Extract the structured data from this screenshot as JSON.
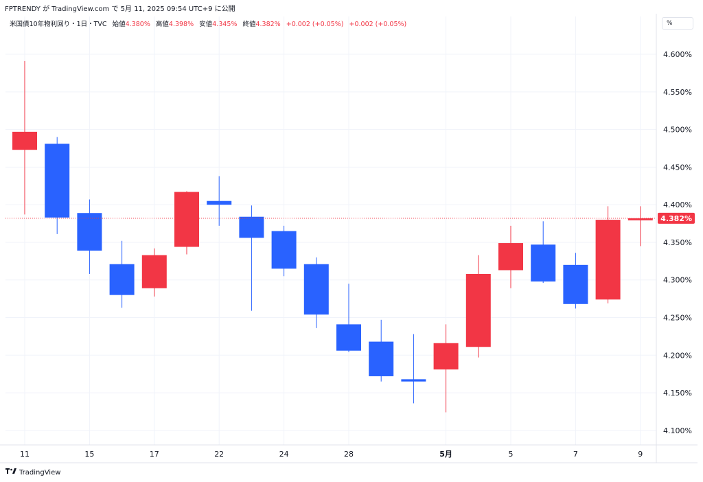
{
  "header": {
    "published": "FPTRENDY が TradingView.com で 5月 11, 2025 09:54 UTC+9 に公開",
    "symbol": "米国債10年物利回り・1日・TVC",
    "open_label": "始値",
    "open_value": "4.380%",
    "high_label": "高値",
    "high_value": "4.398%",
    "low_label": "安値",
    "low_value": "4.345%",
    "close_label": "終値",
    "close_value": "4.382%",
    "change": "+0.002 (+0.05%)",
    "change2": "+0.002 (+0.05%)",
    "unit": "%"
  },
  "footer": {
    "brand": "TradingView"
  },
  "colors": {
    "up": "#f23645",
    "down": "#2962ff",
    "grid": "#f0f3fa",
    "text": "#131722",
    "last_price_line": "#f23645"
  },
  "chart_data": {
    "type": "candlestick",
    "title": "米国債10年物利回り・1日・TVC",
    "ylabel": "%",
    "ylim": [
      4.088,
      4.632
    ],
    "y_ticks": [
      "4.100%",
      "4.150%",
      "4.200%",
      "4.250%",
      "4.300%",
      "4.350%",
      "4.400%",
      "4.450%",
      "4.500%",
      "4.550%",
      "4.600%"
    ],
    "y_tick_values": [
      4.1,
      4.15,
      4.2,
      4.25,
      4.3,
      4.35,
      4.4,
      4.45,
      4.5,
      4.55,
      4.6
    ],
    "x_ticks": [
      {
        "label": "11",
        "index": 0,
        "bold": false
      },
      {
        "label": "15",
        "index": 2,
        "bold": false
      },
      {
        "label": "17",
        "index": 4,
        "bold": false
      },
      {
        "label": "22",
        "index": 6,
        "bold": false
      },
      {
        "label": "24",
        "index": 8,
        "bold": false
      },
      {
        "label": "28",
        "index": 10,
        "bold": false
      },
      {
        "label": "5月",
        "index": 13,
        "bold": true
      },
      {
        "label": "5",
        "index": 15,
        "bold": false
      },
      {
        "label": "7",
        "index": 17,
        "bold": false
      },
      {
        "label": "9",
        "index": 19,
        "bold": false
      }
    ],
    "candles": [
      {
        "o": 4.473,
        "h": 4.591,
        "l": 4.387,
        "c": 4.497
      },
      {
        "o": 4.481,
        "h": 4.49,
        "l": 4.361,
        "c": 4.383
      },
      {
        "o": 4.389,
        "h": 4.407,
        "l": 4.308,
        "c": 4.339
      },
      {
        "o": 4.321,
        "h": 4.352,
        "l": 4.263,
        "c": 4.28
      },
      {
        "o": 4.289,
        "h": 4.342,
        "l": 4.278,
        "c": 4.333
      },
      {
        "o": 4.344,
        "h": 4.418,
        "l": 4.334,
        "c": 4.417
      },
      {
        "o": 4.405,
        "h": 4.438,
        "l": 4.372,
        "c": 4.4
      },
      {
        "o": 4.384,
        "h": 4.399,
        "l": 4.259,
        "c": 4.356
      },
      {
        "o": 4.365,
        "h": 4.372,
        "l": 4.305,
        "c": 4.315
      },
      {
        "o": 4.321,
        "h": 4.33,
        "l": 4.236,
        "c": 4.254
      },
      {
        "o": 4.241,
        "h": 4.295,
        "l": 4.204,
        "c": 4.206
      },
      {
        "o": 4.218,
        "h": 4.247,
        "l": 4.165,
        "c": 4.172
      },
      {
        "o": 4.168,
        "h": 4.228,
        "l": 4.136,
        "c": 4.165
      },
      {
        "o": 4.181,
        "h": 4.241,
        "l": 4.124,
        "c": 4.216
      },
      {
        "o": 4.211,
        "h": 4.333,
        "l": 4.197,
        "c": 4.308
      },
      {
        "o": 4.313,
        "h": 4.372,
        "l": 4.289,
        "c": 4.349
      },
      {
        "o": 4.347,
        "h": 4.378,
        "l": 4.296,
        "c": 4.298
      },
      {
        "o": 4.32,
        "h": 4.336,
        "l": 4.262,
        "c": 4.268
      },
      {
        "o": 4.274,
        "h": 4.398,
        "l": 4.269,
        "c": 4.38
      },
      {
        "o": 4.38,
        "h": 4.398,
        "l": 4.345,
        "c": 4.382
      }
    ],
    "last_price": 4.382,
    "last_price_label": "4.382%",
    "grid": true
  }
}
